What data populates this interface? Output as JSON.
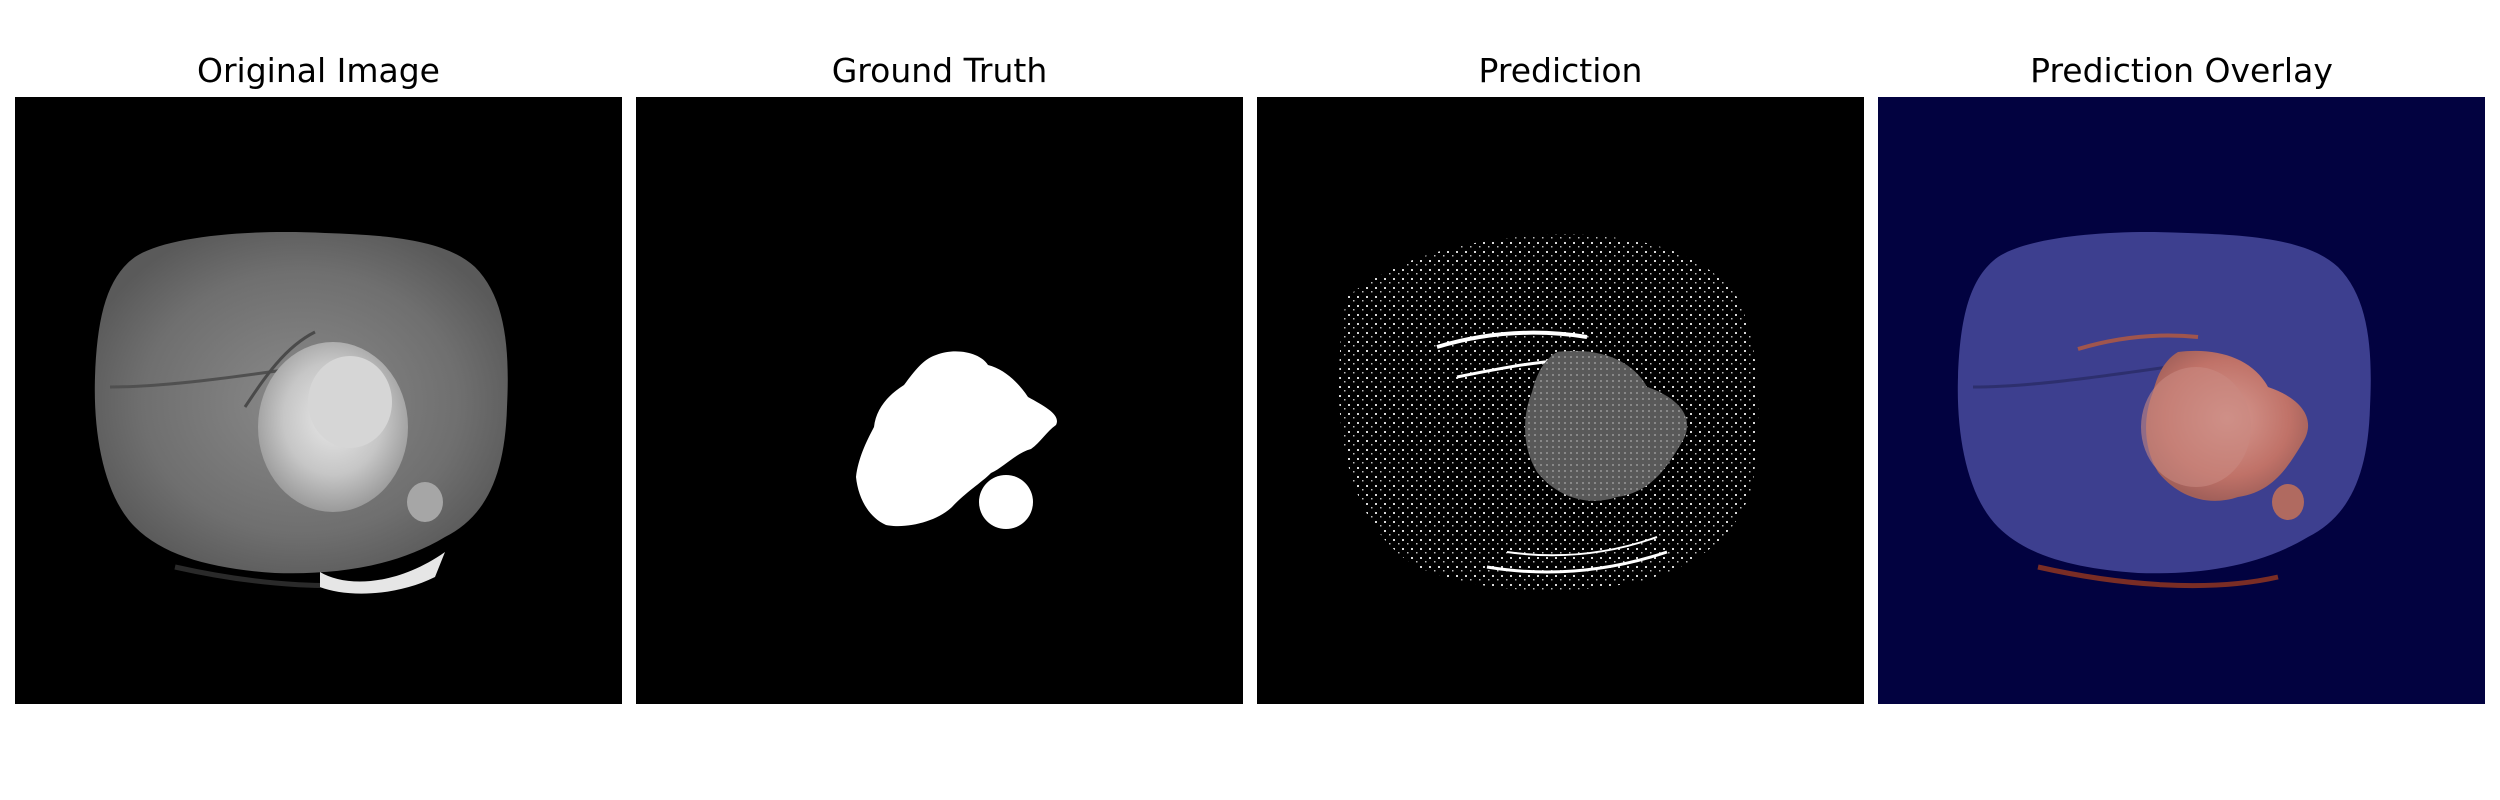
{
  "panels": [
    {
      "id": "original",
      "title": "Original Image"
    },
    {
      "id": "ground-truth",
      "title": "Ground Truth"
    },
    {
      "id": "prediction",
      "title": "Prediction"
    },
    {
      "id": "overlay",
      "title": "Prediction Overlay"
    }
  ],
  "colors": {
    "page_background": "#ffffff",
    "image_background": "#000000",
    "overlay_background": "#020240",
    "mask_foreground": "#ffffff",
    "overlay_tissue": "#3d3f8f",
    "overlay_tumor": "#c77870"
  }
}
